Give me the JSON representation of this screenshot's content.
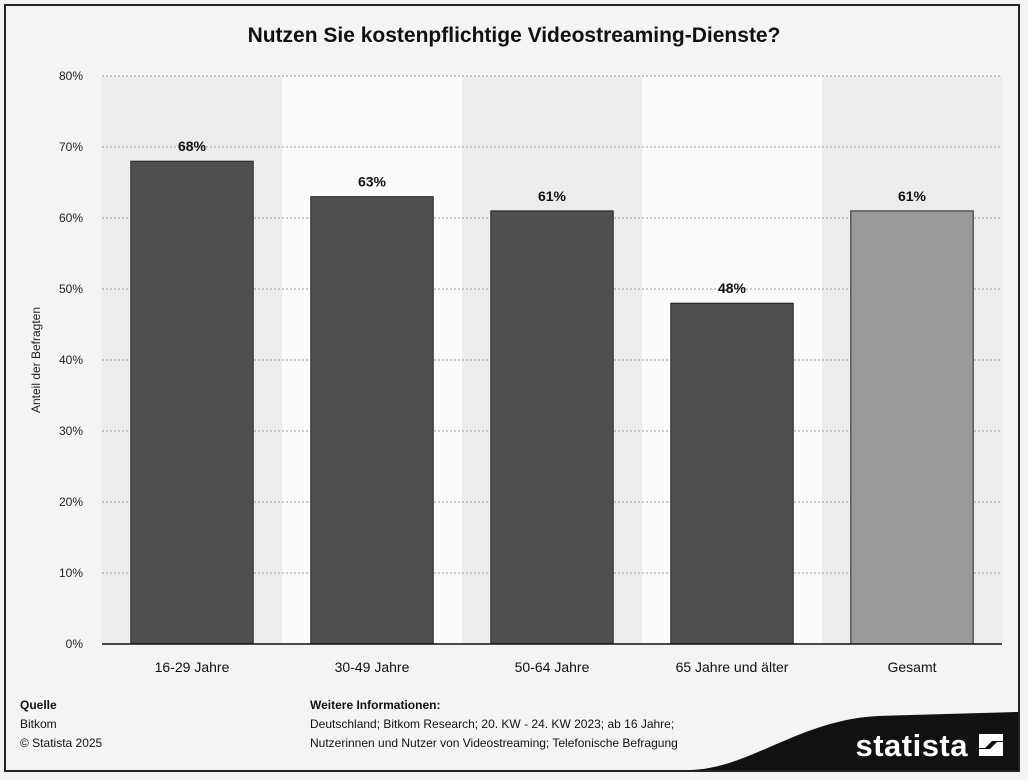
{
  "chart_data": {
    "type": "bar",
    "title": "Nutzen Sie kostenpflichtige Videostreaming-Dienste?",
    "ylabel": "Anteil der Befragten",
    "xlabel": "",
    "categories": [
      "16-29 Jahre",
      "30-49 Jahre",
      "50-64 Jahre",
      "65 Jahre und älter",
      "Gesamt"
    ],
    "values": [
      68,
      63,
      61,
      48,
      61
    ],
    "value_labels": [
      "68%",
      "63%",
      "61%",
      "48%",
      "61%"
    ],
    "ylim": [
      0,
      80
    ],
    "yticks": [
      0,
      10,
      20,
      30,
      40,
      50,
      60,
      70,
      80
    ],
    "ytick_labels": [
      "0%",
      "10%",
      "20%",
      "30%",
      "40%",
      "50%",
      "60%",
      "70%",
      "80%"
    ],
    "grid": true,
    "colors": {
      "bar": "#4f4f4f",
      "highlight_bar": "#9a9a9a",
      "band_light": "#fafafa",
      "band_dark": "#ececec",
      "grid": "#9a9a9a"
    },
    "highlight_index": 4
  },
  "footer": {
    "source_heading": "Quelle",
    "source_lines": [
      "Bitkom",
      "© Statista 2025"
    ],
    "info_heading": "Weitere Informationen:",
    "info_lines": [
      "Deutschland; Bitkom Research; 20. KW - 24. KW 2023; ab 16 Jahre;",
      "Nutzerinnen und Nutzer von Videostreaming; Telefonische Befragung"
    ]
  },
  "brand": {
    "name": "statista",
    "icon": "statista-logo-icon"
  }
}
